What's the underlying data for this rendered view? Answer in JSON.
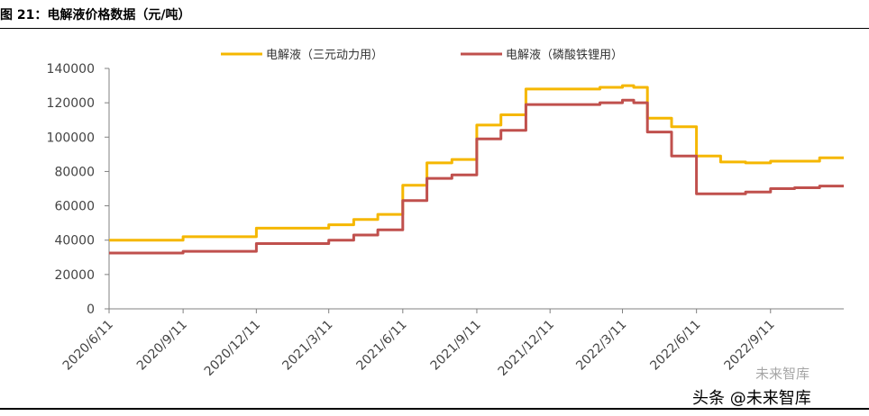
{
  "figure_title": "图 21：电解液价格数据（元/吨）",
  "watermark": {
    "wechat": "未来智库",
    "account": "头条 @未来智库"
  },
  "colors": {
    "ternary": "#F5B700",
    "lfp": "#C0504D",
    "axis": "#808080"
  },
  "chart_data": {
    "type": "line",
    "title": "",
    "xlabel": "",
    "ylabel": "",
    "ylim": [
      0,
      140000
    ],
    "yticks": [
      0,
      20000,
      40000,
      60000,
      80000,
      100000,
      120000,
      140000
    ],
    "xticks": [
      "2020/6/11",
      "2020/9/11",
      "2020/12/11",
      "2021/3/11",
      "2021/6/11",
      "2021/9/11",
      "2021/12/11",
      "2022/3/11",
      "2022/6/11",
      "2022/9/11"
    ],
    "grid": false,
    "legend": "top",
    "x": [
      "2020/6/11",
      "2020/9/11",
      "2020/12/11",
      "2021/3/11",
      "2021/4/11",
      "2021/5/11",
      "2021/6/11",
      "2021/7/11",
      "2021/8/11",
      "2021/9/11",
      "2021/10/11",
      "2021/11/11",
      "2021/12/11",
      "2022/1/11",
      "2022/2/11",
      "2022/3/11",
      "2022/3/25",
      "2022/4/11",
      "2022/5/11",
      "2022/6/11",
      "2022/7/11",
      "2022/8/11",
      "2022/9/11",
      "2022/10/11",
      "2022/11/11",
      "2022/12/11"
    ],
    "series": [
      {
        "name": "电解液（三元动力用）",
        "values": [
          40000,
          42000,
          47000,
          49000,
          52000,
          55000,
          72000,
          85000,
          87000,
          107000,
          113000,
          128000,
          128000,
          128000,
          129000,
          130000,
          129000,
          111000,
          106000,
          89000,
          85500,
          85000,
          86000,
          86000,
          88000,
          88000
        ]
      },
      {
        "name": "电解液（磷酸铁锂用）",
        "values": [
          32500,
          33500,
          38000,
          40000,
          43000,
          46000,
          63000,
          76000,
          78000,
          99000,
          104000,
          119000,
          119000,
          119000,
          120000,
          121500,
          120000,
          103000,
          89000,
          67000,
          67000,
          68000,
          70000,
          70500,
          71500,
          71500
        ]
      }
    ]
  }
}
